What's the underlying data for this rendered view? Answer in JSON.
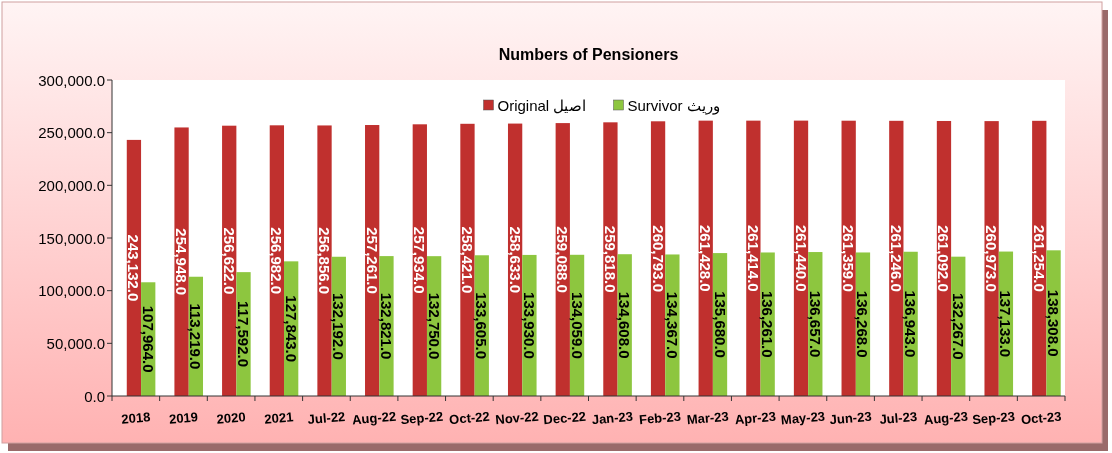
{
  "chart_data": {
    "type": "bar",
    "title": "Numbers of Pensioners",
    "categories": [
      "2018",
      "2019",
      "2020",
      "2021",
      "Jul-22",
      "Aug-22",
      "Sep-22",
      "Oct-22",
      "Nov-22",
      "Dec-22",
      "Jan-23",
      "Feb-23",
      "Mar-23",
      "Apr-23",
      "May-23",
      "Jun-23",
      "Jul-23",
      "Aug-23",
      "Sep-23",
      "Oct-23"
    ],
    "series": [
      {
        "name": "Original اصیل",
        "color": "#c0302e",
        "values": [
          243132,
          254948,
          256622,
          256982,
          256856,
          257261,
          257934,
          258421,
          258633,
          259088,
          259818,
          260793,
          261428,
          261414,
          261440,
          261359,
          261246,
          261092,
          260973,
          261254
        ],
        "value_labels": [
          "243,132.0",
          "254,948.0",
          "256,622.0",
          "256,982.0",
          "256,856.0",
          "257,261.0",
          "257,934.0",
          "258,421.0",
          "258,633.0",
          "259,088.0",
          "259,818.0",
          "260,793.0",
          "261,428.0",
          "261,414.0",
          "261,440.0",
          "261,359.0",
          "261,246.0",
          "261,092.0",
          "260,973.0",
          "261,254.0"
        ]
      },
      {
        "name": "Survivor وریث",
        "color": "#8dc63f",
        "values": [
          107964,
          113219,
          117592,
          127843,
          132192,
          132821,
          132750,
          133605,
          133930,
          134059,
          134608,
          134367,
          135680,
          136261,
          136657,
          136268,
          136943,
          132267,
          137133,
          138308
        ],
        "value_labels": [
          "107,964.0",
          "113,219.0",
          "117,592.0",
          "127,843.0",
          "132,192.0",
          "132,821.0",
          "132,750.0",
          "133,605.0",
          "133,930.0",
          "134,059.0",
          "134,608.0",
          "134,367.0",
          "135,680.0",
          "136,261.0",
          "136,657.0",
          "136,268.0",
          "136,943.0",
          "132,267.0",
          "137,133.0",
          "138,308.0"
        ]
      }
    ],
    "ylim": [
      0,
      300000
    ],
    "yticks": [
      {
        "value": 0,
        "label": "0.0"
      },
      {
        "value": 50000,
        "label": "50,000.0"
      },
      {
        "value": 100000,
        "label": "100,000.0"
      },
      {
        "value": 150000,
        "label": "150,000.0"
      },
      {
        "value": 200000,
        "label": "200,000.0"
      },
      {
        "value": 250000,
        "label": "250,000.0"
      },
      {
        "value": 300000,
        "label": "300,000.0"
      }
    ],
    "legend": "top"
  }
}
